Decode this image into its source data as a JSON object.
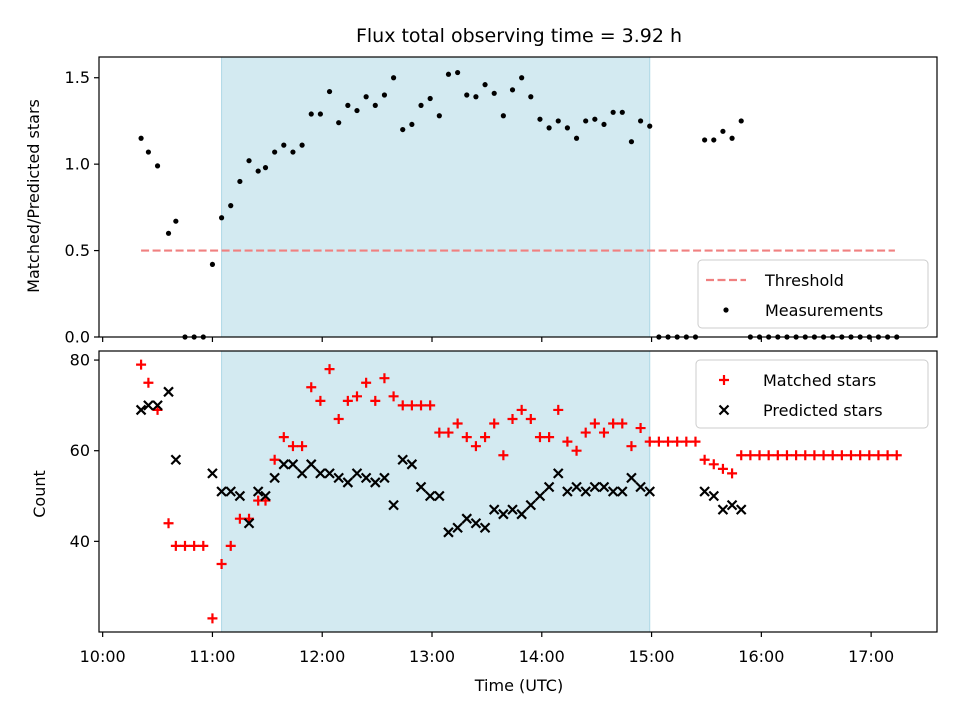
{
  "chart_data": [
    {
      "type": "scatter",
      "title": "Flux total observing time = 3.92 h",
      "ylabel": "Matched/Predicted stars",
      "xlabel": "",
      "ylim": [
        0,
        1.62
      ],
      "xlim": [
        "09:58",
        "17:36"
      ],
      "yticks": [
        "0.0",
        "0.5",
        "1.0",
        "1.5"
      ],
      "shaded_interval": [
        "11:05",
        "14:59"
      ],
      "shade_color": "#d3eaf1",
      "legend_position": "lower-right",
      "series": [
        {
          "name": "Threshold",
          "style": "dashed-line",
          "color": "#f08080",
          "points": [
            [
              "10:21",
              0.5
            ],
            [
              "17:13",
              0.5
            ]
          ]
        },
        {
          "name": "Measurements",
          "style": "dot",
          "color": "#000000",
          "points": [
            [
              "10:21",
              1.15
            ],
            [
              "10:25",
              1.07
            ],
            [
              "10:30",
              0.99
            ],
            [
              "10:36",
              0.6
            ],
            [
              "10:40",
              0.67
            ],
            [
              "10:45",
              0.0
            ],
            [
              "10:50",
              0.0
            ],
            [
              "10:55",
              0.0
            ],
            [
              "11:00",
              0.42
            ],
            [
              "11:05",
              0.69
            ],
            [
              "11:10",
              0.76
            ],
            [
              "11:15",
              0.9
            ],
            [
              "11:20",
              1.02
            ],
            [
              "11:25",
              0.96
            ],
            [
              "11:29",
              0.98
            ],
            [
              "11:34",
              1.07
            ],
            [
              "11:39",
              1.11
            ],
            [
              "11:44",
              1.07
            ],
            [
              "11:49",
              1.11
            ],
            [
              "11:54",
              1.29
            ],
            [
              "11:59",
              1.29
            ],
            [
              "12:04",
              1.42
            ],
            [
              "12:09",
              1.24
            ],
            [
              "12:14",
              1.34
            ],
            [
              "12:19",
              1.31
            ],
            [
              "12:24",
              1.39
            ],
            [
              "12:29",
              1.34
            ],
            [
              "12:34",
              1.4
            ],
            [
              "12:39",
              1.5
            ],
            [
              "12:44",
              1.2
            ],
            [
              "12:49",
              1.23
            ],
            [
              "12:54",
              1.34
            ],
            [
              "12:59",
              1.38
            ],
            [
              "13:04",
              1.28
            ],
            [
              "13:09",
              1.52
            ],
            [
              "13:14",
              1.53
            ],
            [
              "13:19",
              1.4
            ],
            [
              "13:24",
              1.39
            ],
            [
              "13:29",
              1.46
            ],
            [
              "13:34",
              1.41
            ],
            [
              "13:39",
              1.28
            ],
            [
              "13:44",
              1.43
            ],
            [
              "13:49",
              1.5
            ],
            [
              "13:54",
              1.39
            ],
            [
              "13:59",
              1.26
            ],
            [
              "14:04",
              1.21
            ],
            [
              "14:09",
              1.25
            ],
            [
              "14:14",
              1.21
            ],
            [
              "14:19",
              1.15
            ],
            [
              "14:24",
              1.25
            ],
            [
              "14:29",
              1.26
            ],
            [
              "14:34",
              1.23
            ],
            [
              "14:39",
              1.3
            ],
            [
              "14:44",
              1.3
            ],
            [
              "14:49",
              1.13
            ],
            [
              "14:54",
              1.25
            ],
            [
              "14:59",
              1.22
            ],
            [
              "15:04",
              0.0
            ],
            [
              "15:09",
              0.0
            ],
            [
              "15:14",
              0.0
            ],
            [
              "15:19",
              0.0
            ],
            [
              "15:24",
              0.0
            ],
            [
              "15:29",
              1.14
            ],
            [
              "15:34",
              1.14
            ],
            [
              "15:39",
              1.19
            ],
            [
              "15:44",
              1.15
            ],
            [
              "15:49",
              1.25
            ],
            [
              "15:54",
              0.0
            ],
            [
              "15:59",
              0.0
            ],
            [
              "16:04",
              0.0
            ],
            [
              "16:09",
              0.0
            ],
            [
              "16:14",
              0.0
            ],
            [
              "16:19",
              0.0
            ],
            [
              "16:24",
              0.0
            ],
            [
              "16:29",
              0.0
            ],
            [
              "16:34",
              0.0
            ],
            [
              "16:39",
              0.0
            ],
            [
              "16:44",
              0.0
            ],
            [
              "16:49",
              0.0
            ],
            [
              "16:54",
              0.0
            ],
            [
              "16:59",
              0.0
            ],
            [
              "17:04",
              0.0
            ],
            [
              "17:09",
              0.0
            ],
            [
              "17:14",
              0.0
            ]
          ]
        }
      ]
    },
    {
      "type": "scatter",
      "title": "",
      "ylabel": "Count",
      "xlabel": "Time (UTC)",
      "ylim": [
        20,
        82
      ],
      "xlim": [
        "09:58",
        "17:36"
      ],
      "yticks": [
        "40",
        "60",
        "80"
      ],
      "xticks": [
        "10:00",
        "11:00",
        "12:00",
        "13:00",
        "14:00",
        "15:00",
        "16:00",
        "17:00"
      ],
      "shaded_interval": [
        "11:05",
        "14:59"
      ],
      "shade_color": "#d3eaf1",
      "legend_position": "upper-right",
      "series": [
        {
          "name": "Matched stars",
          "marker": "plus",
          "color": "#ff0000",
          "points": [
            [
              "10:21",
              79
            ],
            [
              "10:25",
              75
            ],
            [
              "10:30",
              69
            ],
            [
              "10:36",
              44
            ],
            [
              "10:40",
              39
            ],
            [
              "10:45",
              39
            ],
            [
              "10:50",
              39
            ],
            [
              "10:55",
              39
            ],
            [
              "11:00",
              23
            ],
            [
              "11:05",
              35
            ],
            [
              "11:10",
              39
            ],
            [
              "11:15",
              45
            ],
            [
              "11:20",
              45
            ],
            [
              "11:25",
              49
            ],
            [
              "11:29",
              49
            ],
            [
              "11:34",
              58
            ],
            [
              "11:39",
              63
            ],
            [
              "11:44",
              61
            ],
            [
              "11:49",
              61
            ],
            [
              "11:54",
              74
            ],
            [
              "11:59",
              71
            ],
            [
              "12:04",
              78
            ],
            [
              "12:09",
              67
            ],
            [
              "12:14",
              71
            ],
            [
              "12:19",
              72
            ],
            [
              "12:24",
              75
            ],
            [
              "12:29",
              71
            ],
            [
              "12:34",
              76
            ],
            [
              "12:39",
              72
            ],
            [
              "12:44",
              70
            ],
            [
              "12:49",
              70
            ],
            [
              "12:54",
              70
            ],
            [
              "12:59",
              70
            ],
            [
              "13:04",
              64
            ],
            [
              "13:09",
              64
            ],
            [
              "13:14",
              66
            ],
            [
              "13:19",
              63
            ],
            [
              "13:24",
              61
            ],
            [
              "13:29",
              63
            ],
            [
              "13:34",
              66
            ],
            [
              "13:39",
              59
            ],
            [
              "13:44",
              67
            ],
            [
              "13:49",
              69
            ],
            [
              "13:54",
              67
            ],
            [
              "13:59",
              63
            ],
            [
              "14:04",
              63
            ],
            [
              "14:09",
              69
            ],
            [
              "14:14",
              62
            ],
            [
              "14:19",
              60
            ],
            [
              "14:24",
              64
            ],
            [
              "14:29",
              66
            ],
            [
              "14:34",
              64
            ],
            [
              "14:39",
              66
            ],
            [
              "14:44",
              66
            ],
            [
              "14:49",
              61
            ],
            [
              "14:54",
              65
            ],
            [
              "14:59",
              62
            ],
            [
              "15:04",
              62
            ],
            [
              "15:09",
              62
            ],
            [
              "15:14",
              62
            ],
            [
              "15:19",
              62
            ],
            [
              "15:24",
              62
            ],
            [
              "15:29",
              58
            ],
            [
              "15:34",
              57
            ],
            [
              "15:39",
              56
            ],
            [
              "15:44",
              55
            ],
            [
              "15:49",
              59
            ],
            [
              "15:54",
              59
            ],
            [
              "15:59",
              59
            ],
            [
              "16:04",
              59
            ],
            [
              "16:09",
              59
            ],
            [
              "16:14",
              59
            ],
            [
              "16:19",
              59
            ],
            [
              "16:24",
              59
            ],
            [
              "16:29",
              59
            ],
            [
              "16:34",
              59
            ],
            [
              "16:39",
              59
            ],
            [
              "16:44",
              59
            ],
            [
              "16:49",
              59
            ],
            [
              "16:54",
              59
            ],
            [
              "16:59",
              59
            ],
            [
              "17:04",
              59
            ],
            [
              "17:09",
              59
            ],
            [
              "17:14",
              59
            ]
          ]
        },
        {
          "name": "Predicted stars",
          "marker": "x",
          "color": "#000000",
          "points": [
            [
              "10:21",
              69
            ],
            [
              "10:25",
              70
            ],
            [
              "10:30",
              70
            ],
            [
              "10:36",
              73
            ],
            [
              "10:40",
              58
            ],
            [
              "11:00",
              55
            ],
            [
              "11:05",
              51
            ],
            [
              "11:10",
              51
            ],
            [
              "11:15",
              50
            ],
            [
              "11:20",
              44
            ],
            [
              "11:25",
              51
            ],
            [
              "11:29",
              50
            ],
            [
              "11:34",
              54
            ],
            [
              "11:39",
              57
            ],
            [
              "11:44",
              57
            ],
            [
              "11:49",
              55
            ],
            [
              "11:54",
              57
            ],
            [
              "11:59",
              55
            ],
            [
              "12:04",
              55
            ],
            [
              "12:09",
              54
            ],
            [
              "12:14",
              53
            ],
            [
              "12:19",
              55
            ],
            [
              "12:24",
              54
            ],
            [
              "12:29",
              53
            ],
            [
              "12:34",
              54
            ],
            [
              "12:39",
              48
            ],
            [
              "12:44",
              58
            ],
            [
              "12:49",
              57
            ],
            [
              "12:54",
              52
            ],
            [
              "12:59",
              50
            ],
            [
              "13:04",
              50
            ],
            [
              "13:09",
              42
            ],
            [
              "13:14",
              43
            ],
            [
              "13:19",
              45
            ],
            [
              "13:24",
              44
            ],
            [
              "13:29",
              43
            ],
            [
              "13:34",
              47
            ],
            [
              "13:39",
              46
            ],
            [
              "13:44",
              47
            ],
            [
              "13:49",
              46
            ],
            [
              "13:54",
              48
            ],
            [
              "13:59",
              50
            ],
            [
              "14:04",
              52
            ],
            [
              "14:09",
              55
            ],
            [
              "14:14",
              51
            ],
            [
              "14:19",
              52
            ],
            [
              "14:24",
              51
            ],
            [
              "14:29",
              52
            ],
            [
              "14:34",
              52
            ],
            [
              "14:39",
              51
            ],
            [
              "14:44",
              51
            ],
            [
              "14:49",
              54
            ],
            [
              "14:54",
              52
            ],
            [
              "14:59",
              51
            ],
            [
              "15:29",
              51
            ],
            [
              "15:34",
              50
            ],
            [
              "15:39",
              47
            ],
            [
              "15:44",
              48
            ],
            [
              "15:49",
              47
            ]
          ]
        }
      ]
    }
  ]
}
